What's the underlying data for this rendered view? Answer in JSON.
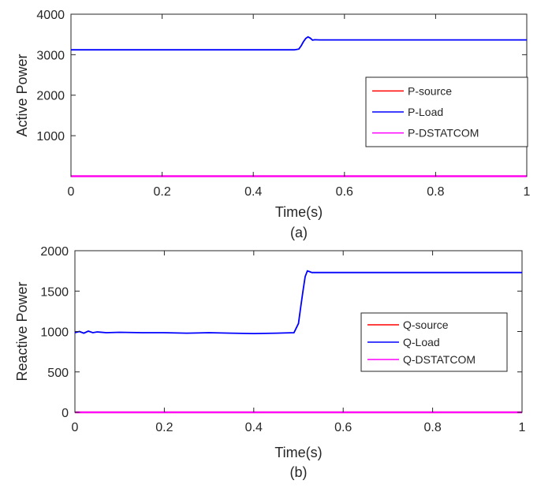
{
  "chart_data": [
    {
      "type": "line",
      "panel": "(a)",
      "xlabel": "Time(s)",
      "ylabel": "Active Power",
      "caption": "(a)",
      "xlim": [
        0,
        1
      ],
      "ylim": [
        -10,
        4000
      ],
      "xticks": [
        0,
        0.2,
        0.4,
        0.6,
        0.8,
        1
      ],
      "xtick_labels": [
        "0",
        "0.2",
        "0.4",
        "0.6",
        "0.8",
        "1"
      ],
      "yticks": [
        1000,
        2000,
        3000,
        4000
      ],
      "ytick_labels": [
        "1000",
        "2000",
        "3000",
        "4000"
      ],
      "legend_position": "center-right",
      "series": [
        {
          "name": "P-source",
          "color": "#ff0000",
          "x": [
            0,
            1
          ],
          "y": [
            0,
            0
          ]
        },
        {
          "name": "P-Load",
          "color": "#0000ff",
          "x": [
            0,
            0.49,
            0.5,
            0.505,
            0.51,
            0.515,
            0.52,
            0.525,
            0.53,
            0.535,
            0.545,
            1
          ],
          "y": [
            3120,
            3120,
            3140,
            3220,
            3320,
            3400,
            3440,
            3410,
            3360,
            3370,
            3365,
            3365
          ]
        },
        {
          "name": "P-DSTATCOM",
          "color": "#ff00ff",
          "x": [
            0,
            1
          ],
          "y": [
            0,
            0
          ]
        }
      ]
    },
    {
      "type": "line",
      "panel": "(b)",
      "xlabel": "Time(s)",
      "ylabel": "Reactive Power",
      "caption": "(b)",
      "xlim": [
        0,
        1
      ],
      "ylim": [
        0,
        2000
      ],
      "xticks": [
        0,
        0.2,
        0.4,
        0.6,
        0.8,
        1
      ],
      "xtick_labels": [
        "0",
        "0.2",
        "0.4",
        "0.6",
        "0.8",
        "1"
      ],
      "yticks": [
        0,
        500,
        1000,
        1500,
        2000
      ],
      "ytick_labels": [
        "0",
        "500",
        "1000",
        "1500",
        "2000"
      ],
      "legend_position": "center-right",
      "series": [
        {
          "name": "Q-source",
          "color": "#ff0000",
          "x": [
            0,
            1
          ],
          "y": [
            0,
            0
          ]
        },
        {
          "name": "Q-Load",
          "color": "#0000ff",
          "x": [
            0,
            0.01,
            0.02,
            0.03,
            0.04,
            0.05,
            0.07,
            0.1,
            0.15,
            0.2,
            0.25,
            0.3,
            0.35,
            0.4,
            0.45,
            0.49,
            0.5,
            0.505,
            0.51,
            0.515,
            0.52,
            0.525,
            0.53,
            0.54,
            1
          ],
          "y": [
            985,
            1000,
            980,
            1005,
            985,
            995,
            985,
            990,
            985,
            985,
            980,
            985,
            980,
            975,
            980,
            985,
            1100,
            1300,
            1500,
            1680,
            1750,
            1740,
            1730,
            1730,
            1730
          ]
        },
        {
          "name": "Q-DSTATCOM",
          "color": "#ff00ff",
          "x": [
            0,
            1
          ],
          "y": [
            0,
            0
          ]
        }
      ]
    }
  ]
}
